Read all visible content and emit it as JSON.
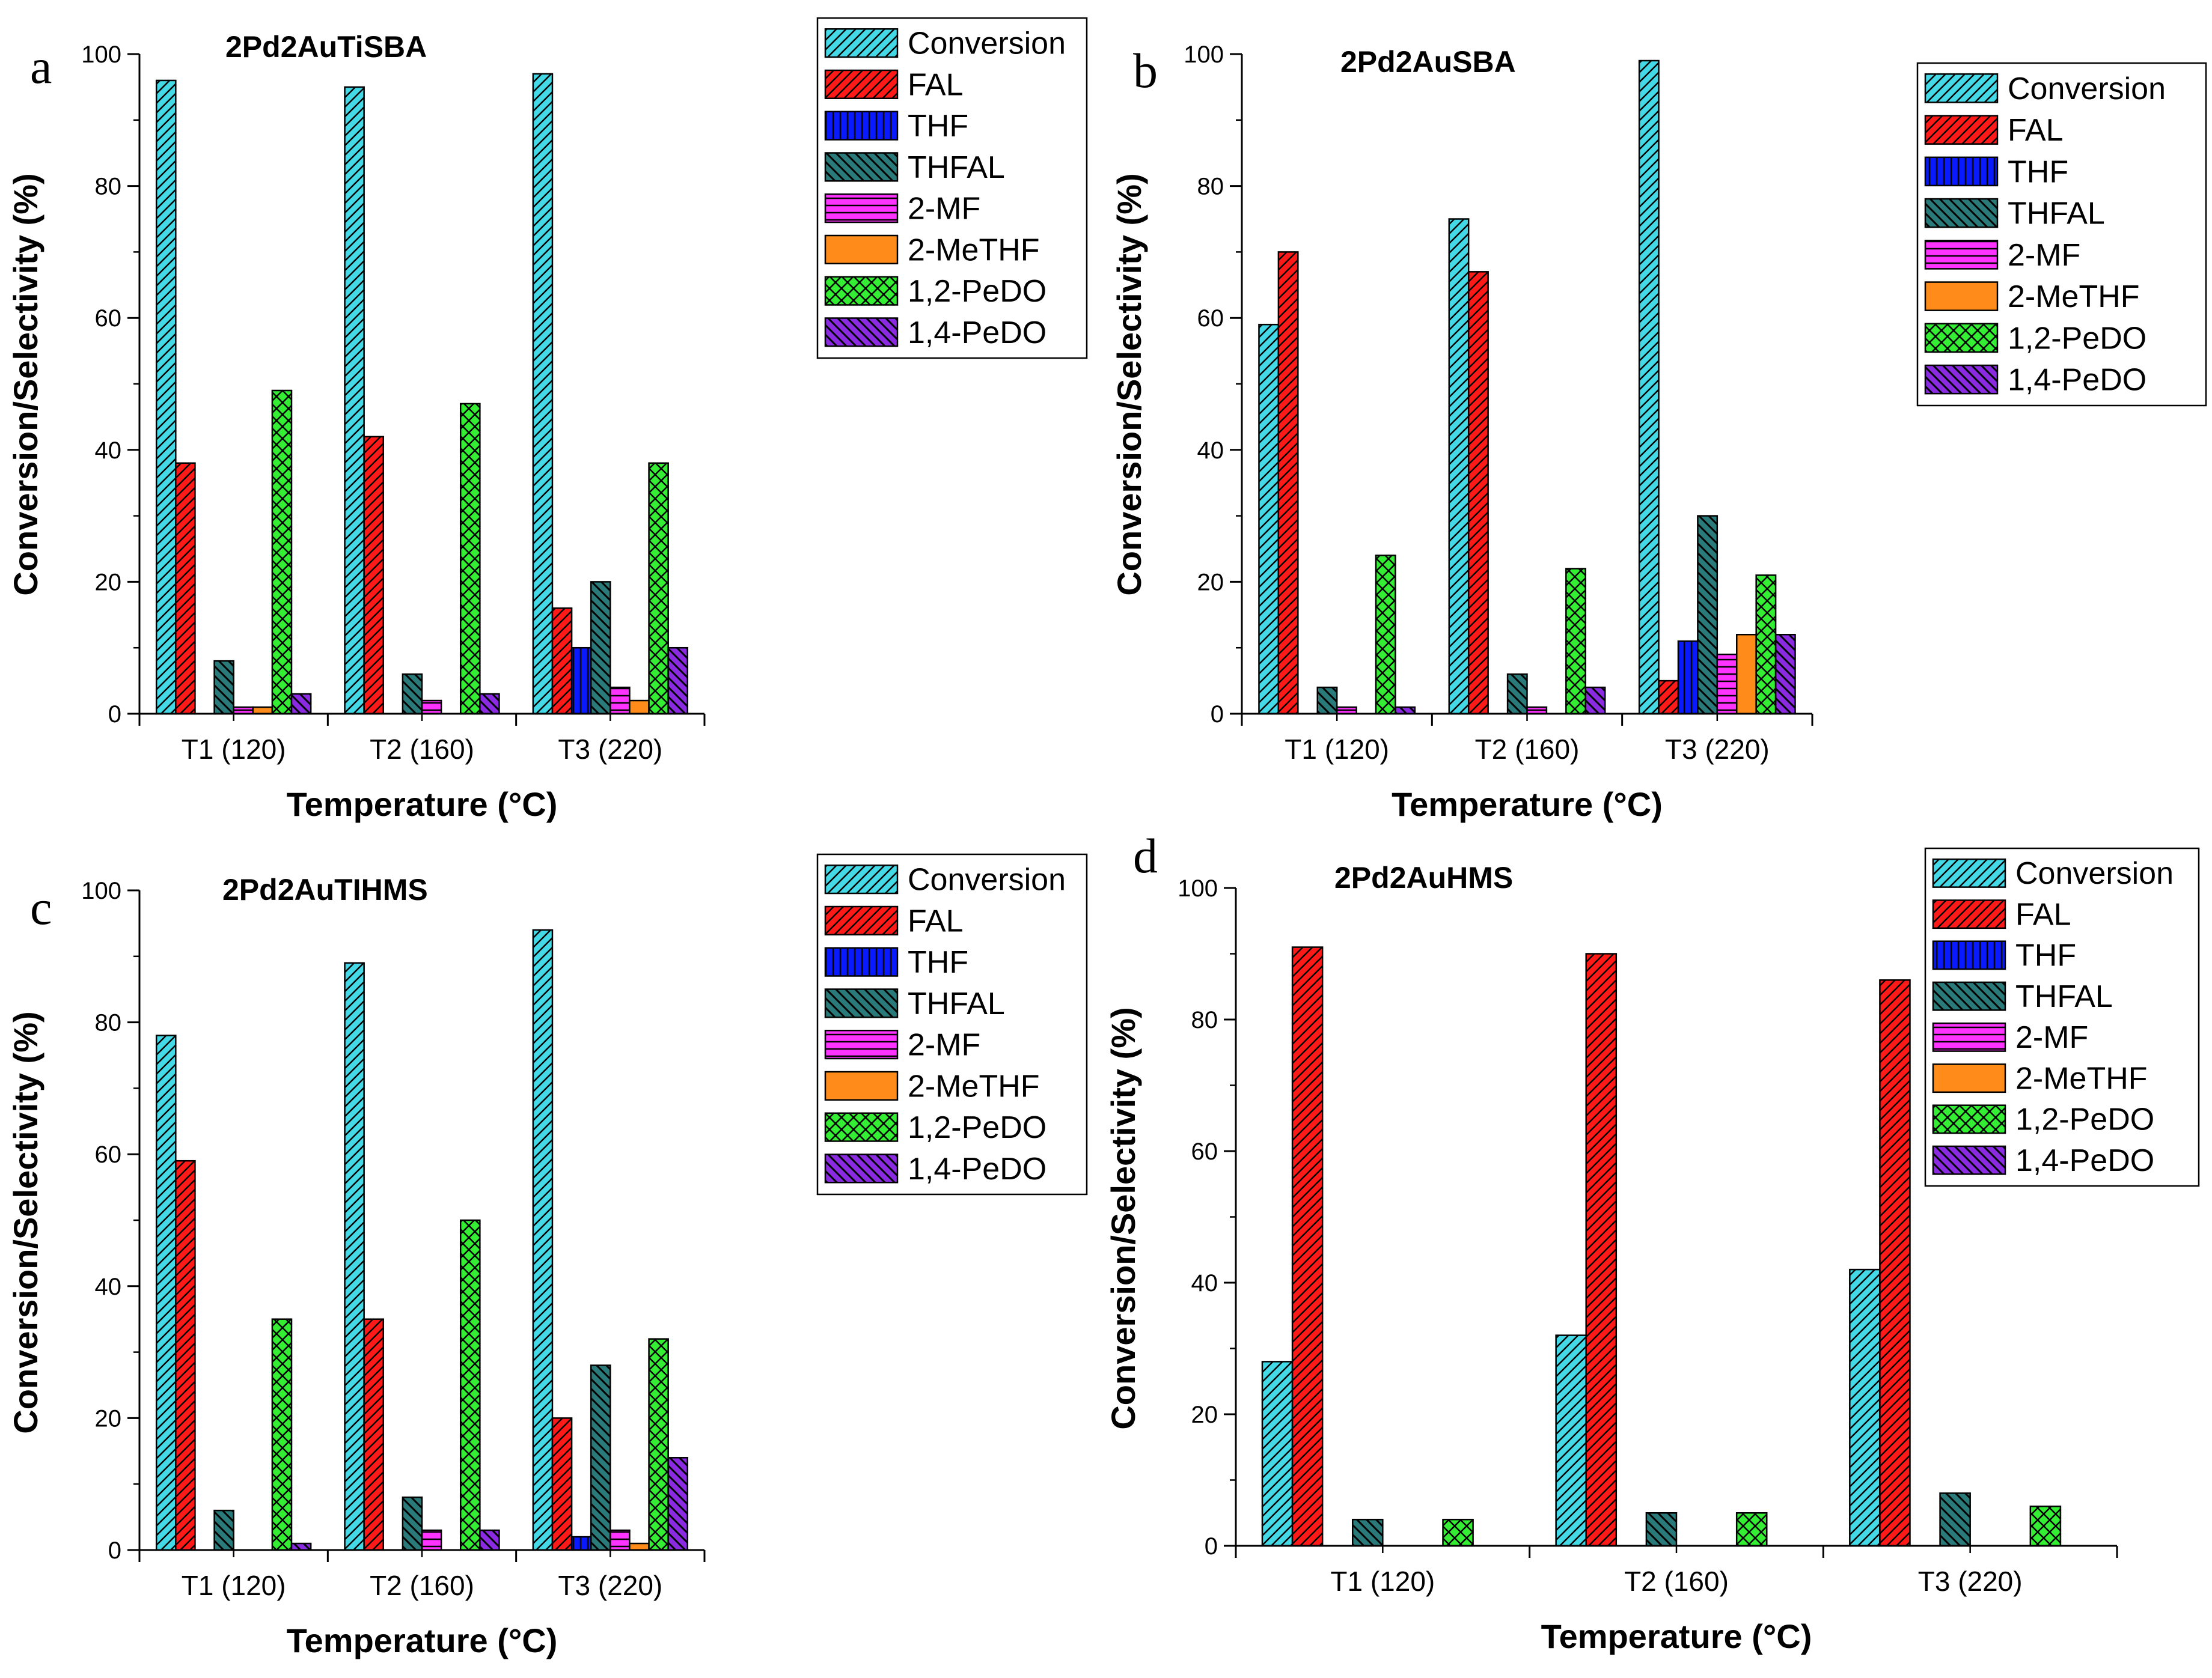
{
  "figure": {
    "colors": {
      "Conversion": "#44d9e6",
      "FAL": "#ff1a1a",
      "THF": "#0a1aff",
      "THFAL": "#2b7a7a",
      "2-MF": "#ff33ff",
      "2-MeTHF": "#ff8c1a",
      "1,2-PeDO": "#33ee33",
      "1,4-PeDO": "#8a2be2"
    },
    "patterns": {
      "Conversion": "hatch-right",
      "FAL": "hatch-right",
      "THF": "vertical",
      "THFAL": "hatch-left",
      "2-MF": "horizontal",
      "2-MeTHF": "solid",
      "1,2-PeDO": "crosshatch",
      "1,4-PeDO": "hatch-left"
    }
  },
  "chart_data": [
    {
      "panel": "a",
      "type": "bar",
      "title": "2Pd2AuTiSBA",
      "xlabel": "Temperature (°C)",
      "ylabel": "Conversion/Selectivity (%)",
      "ylim": [
        0,
        100
      ],
      "yticks": [
        "0",
        "20",
        "40",
        "60",
        "80",
        "100"
      ],
      "legend_position": "top-right",
      "categories": [
        "T1 (120)",
        "T2 (160)",
        "T3 (220)"
      ],
      "series": [
        {
          "name": "Conversion",
          "values": [
            96,
            95,
            97
          ]
        },
        {
          "name": "FAL",
          "values": [
            38,
            42,
            16
          ]
        },
        {
          "name": "THF",
          "values": [
            0,
            0,
            10
          ]
        },
        {
          "name": "THFAL",
          "values": [
            8,
            6,
            20
          ]
        },
        {
          "name": "2-MF",
          "values": [
            1,
            2,
            4
          ]
        },
        {
          "name": "2-MeTHF",
          "values": [
            1,
            0,
            2
          ]
        },
        {
          "name": "1,2-PeDO",
          "values": [
            49,
            47,
            38
          ]
        },
        {
          "name": "1,4-PeDO",
          "values": [
            3,
            3,
            10
          ]
        }
      ]
    },
    {
      "panel": "b",
      "type": "bar",
      "title": "2Pd2AuSBA",
      "xlabel": "Temperature (°C)",
      "ylabel": "Conversion/Selectivity (%)",
      "ylim": [
        0,
        100
      ],
      "yticks": [
        "0",
        "20",
        "40",
        "60",
        "80",
        "100"
      ],
      "legend_position": "top-right",
      "categories": [
        "T1 (120)",
        "T2 (160)",
        "T3 (220)"
      ],
      "series": [
        {
          "name": "Conversion",
          "values": [
            59,
            75,
            99
          ]
        },
        {
          "name": "FAL",
          "values": [
            70,
            67,
            5
          ]
        },
        {
          "name": "THF",
          "values": [
            0,
            0,
            11
          ]
        },
        {
          "name": "THFAL",
          "values": [
            4,
            6,
            30
          ]
        },
        {
          "name": "2-MF",
          "values": [
            1,
            1,
            9
          ]
        },
        {
          "name": "2-MeTHF",
          "values": [
            0,
            0,
            12
          ]
        },
        {
          "name": "1,2-PeDO",
          "values": [
            24,
            22,
            21
          ]
        },
        {
          "name": "1,4-PeDO",
          "values": [
            1,
            4,
            12
          ]
        }
      ]
    },
    {
      "panel": "c",
      "type": "bar",
      "title": "2Pd2AuTIHMS",
      "xlabel": "Temperature (°C)",
      "ylabel": "Conversion/Selectivity (%)",
      "ylim": [
        0,
        100
      ],
      "yticks": [
        "0",
        "20",
        "40",
        "60",
        "80",
        "100"
      ],
      "legend_position": "top-right",
      "categories": [
        "T1 (120)",
        "T2 (160)",
        "T3 (220)"
      ],
      "series": [
        {
          "name": "Conversion",
          "values": [
            78,
            89,
            94
          ]
        },
        {
          "name": "FAL",
          "values": [
            59,
            35,
            20
          ]
        },
        {
          "name": "THF",
          "values": [
            0,
            0,
            2
          ]
        },
        {
          "name": "THFAL",
          "values": [
            6,
            8,
            28
          ]
        },
        {
          "name": "2-MF",
          "values": [
            0,
            3,
            3
          ]
        },
        {
          "name": "2-MeTHF",
          "values": [
            0,
            0,
            1
          ]
        },
        {
          "name": "1,2-PeDO",
          "values": [
            35,
            50,
            32
          ]
        },
        {
          "name": "1,4-PeDO",
          "values": [
            1,
            3,
            14
          ]
        }
      ]
    },
    {
      "panel": "d",
      "type": "bar",
      "title": "2Pd2AuHMS",
      "xlabel": "Temperature (°C)",
      "ylabel": "Conversion/Selectivity (%)",
      "ylim": [
        0,
        100
      ],
      "yticks": [
        "0",
        "20",
        "40",
        "60",
        "80",
        "100"
      ],
      "legend_position": "top-right",
      "categories": [
        "T1 (120)",
        "T2 (160)",
        "T3 (220)"
      ],
      "series": [
        {
          "name": "Conversion",
          "values": [
            28,
            32,
            42
          ]
        },
        {
          "name": "FAL",
          "values": [
            91,
            90,
            86
          ]
        },
        {
          "name": "THF",
          "values": [
            0,
            0,
            0
          ]
        },
        {
          "name": "THFAL",
          "values": [
            4,
            5,
            8
          ]
        },
        {
          "name": "2-MF",
          "values": [
            0,
            0,
            0
          ]
        },
        {
          "name": "2-MeTHF",
          "values": [
            0,
            0,
            0
          ]
        },
        {
          "name": "1,2-PeDO",
          "values": [
            4,
            5,
            6
          ]
        },
        {
          "name": "1,4-PeDO",
          "values": [
            0,
            0,
            0
          ]
        }
      ]
    }
  ]
}
